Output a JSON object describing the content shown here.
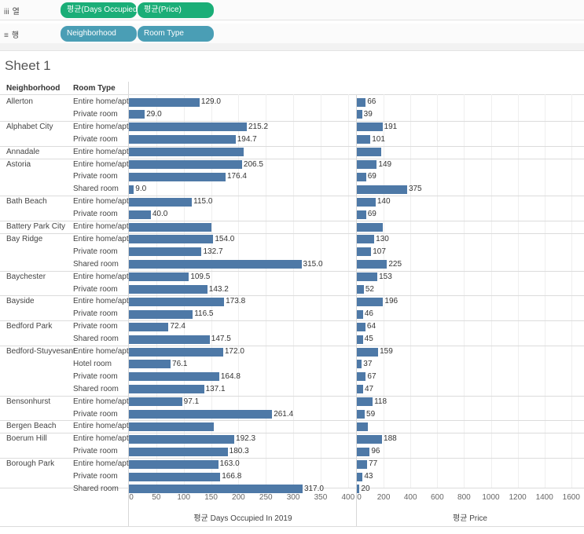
{
  "shelves": {
    "columns": {
      "icon": "iii",
      "label": "열",
      "pills": [
        "평균(Days Occupied In..",
        "평균(Price)"
      ]
    },
    "rows": {
      "icon": "≡",
      "label": "행",
      "pills": [
        "Neighborhood",
        "Room Type"
      ]
    }
  },
  "sheet_title": "Sheet 1",
  "headers": {
    "neighborhood": "Neighborhood",
    "room_type": "Room Type"
  },
  "colors": {
    "bar": "#4e79a7",
    "pill_measure": "#1aae77",
    "pill_dimension": "#4a9eb5"
  },
  "chart_data": {
    "type": "bar",
    "orientation": "horizontal",
    "groups": [
      {
        "neighborhood": "Allerton",
        "rows": [
          {
            "room_type": "Entire home/apt",
            "days": 129.0,
            "days_label": "129.0",
            "price": 66,
            "price_label": "66"
          },
          {
            "room_type": "Private room",
            "days": 29.0,
            "days_label": "29.0",
            "price": 39,
            "price_label": "39"
          }
        ]
      },
      {
        "neighborhood": "Alphabet City",
        "rows": [
          {
            "room_type": "Entire home/apt",
            "days": 215.2,
            "days_label": "215.2",
            "price": 191,
            "price_label": "191"
          },
          {
            "room_type": "Private room",
            "days": 194.7,
            "days_label": "194.7",
            "price": 101,
            "price_label": "101"
          }
        ]
      },
      {
        "neighborhood": "Annadale",
        "rows": [
          {
            "room_type": "Entire home/apt",
            "days": 210,
            "days_label": "",
            "price": 180,
            "price_label": ""
          }
        ]
      },
      {
        "neighborhood": "Astoria",
        "rows": [
          {
            "room_type": "Entire home/apt",
            "days": 206.5,
            "days_label": "206.5",
            "price": 149,
            "price_label": "149"
          },
          {
            "room_type": "Private room",
            "days": 176.4,
            "days_label": "176.4",
            "price": 69,
            "price_label": "69"
          },
          {
            "room_type": "Shared room",
            "days": 9.0,
            "days_label": "9.0",
            "price": 375,
            "price_label": "375"
          }
        ]
      },
      {
        "neighborhood": "Bath Beach",
        "rows": [
          {
            "room_type": "Entire home/apt",
            "days": 115.0,
            "days_label": "115.0",
            "price": 140,
            "price_label": "140"
          },
          {
            "room_type": "Private room",
            "days": 40.0,
            "days_label": "40.0",
            "price": 69,
            "price_label": "69"
          }
        ]
      },
      {
        "neighborhood": "Battery Park City",
        "rows": [
          {
            "room_type": "Entire home/apt",
            "days": 150,
            "days_label": "",
            "price": 195,
            "price_label": ""
          }
        ]
      },
      {
        "neighborhood": "Bay Ridge",
        "rows": [
          {
            "room_type": "Entire home/apt",
            "days": 154.0,
            "days_label": "154.0",
            "price": 130,
            "price_label": "130"
          },
          {
            "room_type": "Private room",
            "days": 132.7,
            "days_label": "132.7",
            "price": 107,
            "price_label": "107"
          },
          {
            "room_type": "Shared room",
            "days": 315.0,
            "days_label": "315.0",
            "price": 225,
            "price_label": "225"
          }
        ]
      },
      {
        "neighborhood": "Baychester",
        "rows": [
          {
            "room_type": "Entire home/apt",
            "days": 109.5,
            "days_label": "109.5",
            "price": 153,
            "price_label": "153"
          },
          {
            "room_type": "Private room",
            "days": 143.2,
            "days_label": "143.2",
            "price": 52,
            "price_label": "52"
          }
        ]
      },
      {
        "neighborhood": "Bayside",
        "rows": [
          {
            "room_type": "Entire home/apt",
            "days": 173.8,
            "days_label": "173.8",
            "price": 196,
            "price_label": "196"
          },
          {
            "room_type": "Private room",
            "days": 116.5,
            "days_label": "116.5",
            "price": 46,
            "price_label": "46"
          }
        ]
      },
      {
        "neighborhood": "Bedford Park",
        "rows": [
          {
            "room_type": "Private room",
            "days": 72.4,
            "days_label": "72.4",
            "price": 64,
            "price_label": "64"
          },
          {
            "room_type": "Shared room",
            "days": 147.5,
            "days_label": "147.5",
            "price": 45,
            "price_label": "45"
          }
        ]
      },
      {
        "neighborhood": "Bedford-Stuyvesant",
        "rows": [
          {
            "room_type": "Entire home/apt",
            "days": 172.0,
            "days_label": "172.0",
            "price": 159,
            "price_label": "159"
          },
          {
            "room_type": "Hotel room",
            "days": 76.1,
            "days_label": "76.1",
            "price": 37,
            "price_label": "37"
          },
          {
            "room_type": "Private room",
            "days": 164.8,
            "days_label": "164.8",
            "price": 67,
            "price_label": "67"
          },
          {
            "room_type": "Shared room",
            "days": 137.1,
            "days_label": "137.1",
            "price": 47,
            "price_label": "47"
          }
        ]
      },
      {
        "neighborhood": "Bensonhurst",
        "rows": [
          {
            "room_type": "Entire home/apt",
            "days": 97.1,
            "days_label": "97.1",
            "price": 118,
            "price_label": "118"
          },
          {
            "room_type": "Private room",
            "days": 261.4,
            "days_label": "261.4",
            "price": 59,
            "price_label": "59"
          }
        ]
      },
      {
        "neighborhood": "Bergen Beach",
        "rows": [
          {
            "room_type": "Entire home/apt",
            "days": 155,
            "days_label": "",
            "price": 85,
            "price_label": ""
          }
        ]
      },
      {
        "neighborhood": "Boerum Hill",
        "rows": [
          {
            "room_type": "Entire home/apt",
            "days": 192.3,
            "days_label": "192.3",
            "price": 188,
            "price_label": "188"
          },
          {
            "room_type": "Private room",
            "days": 180.3,
            "days_label": "180.3",
            "price": 96,
            "price_label": "96"
          }
        ]
      },
      {
        "neighborhood": "Borough Park",
        "rows": [
          {
            "room_type": "Entire home/apt",
            "days": 163.0,
            "days_label": "163.0",
            "price": 77,
            "price_label": "77"
          },
          {
            "room_type": "Private room",
            "days": 166.8,
            "days_label": "166.8",
            "price": 43,
            "price_label": "43"
          },
          {
            "room_type": "Shared room",
            "days": 317.0,
            "days_label": "317.0",
            "price": 20,
            "price_label": "20"
          }
        ]
      }
    ],
    "axes": {
      "days": {
        "title": "평균 Days Occupied In 2019",
        "range": [
          0,
          400
        ],
        "ticks": [
          "0",
          "50",
          "100",
          "150",
          "200",
          "250",
          "300",
          "350",
          "400"
        ]
      },
      "price": {
        "title": "평균 Price",
        "range": [
          0,
          1600
        ],
        "ticks": [
          "0",
          "200",
          "400",
          "600",
          "800",
          "1000",
          "1200",
          "1400",
          "1600"
        ]
      }
    }
  }
}
